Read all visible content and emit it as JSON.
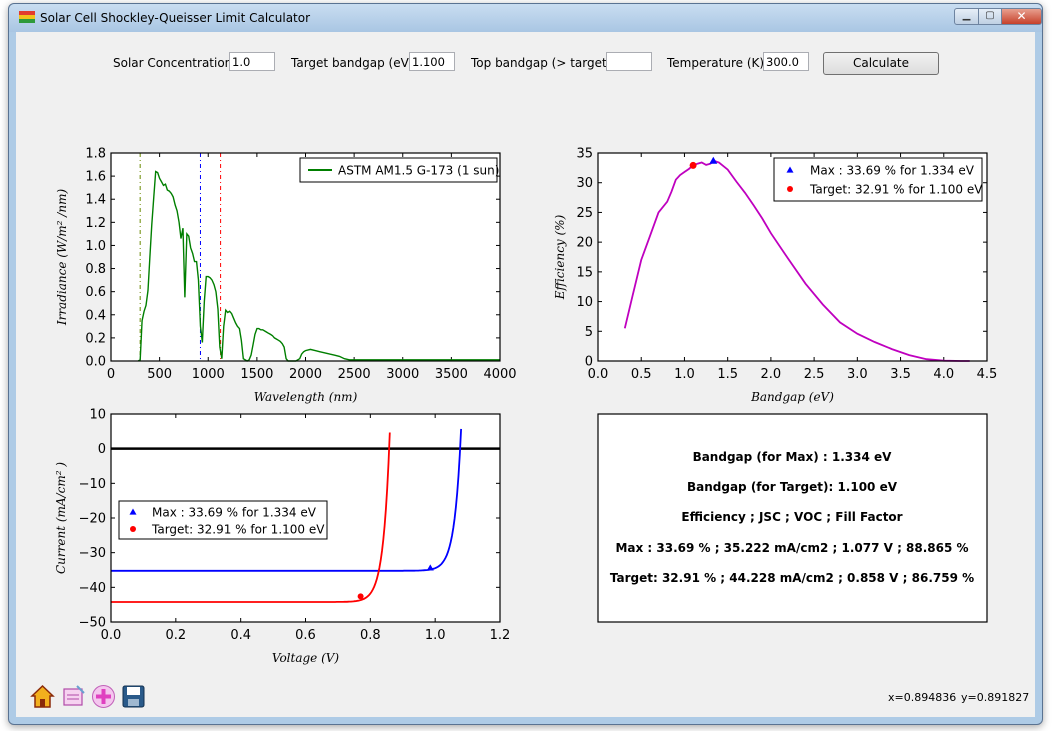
{
  "window": {
    "title": "Solar Cell Shockley-Queisser Limit Calculator",
    "controls": {
      "minimize": "▁",
      "maximize": "▢",
      "close": "✕"
    }
  },
  "toolbar": {
    "concentration_label": "Solar Concentration:",
    "concentration_value": "1.0",
    "target_label": "Target bandgap (eV):",
    "target_value": "1.100",
    "top_label": "Top bandgap (> target):",
    "top_value": "",
    "temp_label": "Temperature (K):",
    "temp_value": "300.0",
    "calculate_label": "Calculate"
  },
  "chart_data": [
    {
      "type": "line",
      "name": "spectrum",
      "xlabel": "Wavelength (nm)",
      "ylabel": "Irradiance (W/m² /nm)",
      "xlim": [
        0,
        4000
      ],
      "ylim": [
        0,
        1.8
      ],
      "xticks": [
        0,
        500,
        1000,
        1500,
        2000,
        2500,
        3000,
        3500,
        4000
      ],
      "yticks": [
        0.0,
        0.2,
        0.4,
        0.6,
        0.8,
        1.0,
        1.2,
        1.4,
        1.6,
        1.8
      ],
      "legend": "ASTM AM1.5 G-173 (1 sun)",
      "legend_position": "top-right",
      "color": "#007f00",
      "vlines": [
        {
          "x": 300,
          "color": "#6a8a00"
        },
        {
          "x": 920,
          "color": "#0000ff"
        },
        {
          "x": 1127,
          "color": "#ff0000"
        }
      ],
      "series": [
        {
          "x": [
            280,
            300,
            320,
            340,
            360,
            380,
            400,
            420,
            440,
            460,
            480,
            500,
            520,
            540,
            560,
            580,
            600,
            620,
            640,
            660,
            680,
            700,
            720,
            740,
            760,
            780,
            800,
            820,
            840,
            860,
            880,
            900,
            920,
            940,
            960,
            980,
            1000,
            1020,
            1040,
            1060,
            1080,
            1100,
            1120,
            1140,
            1160,
            1180,
            1200,
            1220,
            1240,
            1260,
            1280,
            1300,
            1320,
            1340,
            1360,
            1400,
            1420,
            1440,
            1460,
            1480,
            1500,
            1520,
            1540,
            1560,
            1580,
            1600,
            1620,
            1640,
            1660,
            1680,
            1700,
            1720,
            1740,
            1760,
            1780,
            1800,
            1820,
            1860,
            1900,
            1940,
            1960,
            1980,
            2000,
            2050,
            2100,
            2150,
            2200,
            2250,
            2300,
            2350,
            2400,
            2450,
            2500,
            2600,
            2800,
            3000,
            3200,
            3400,
            3600,
            3800,
            4000
          ],
          "y": [
            0.0,
            0.01,
            0.35,
            0.43,
            0.48,
            0.61,
            0.9,
            1.18,
            1.42,
            1.64,
            1.63,
            1.58,
            1.55,
            1.52,
            1.53,
            1.48,
            1.47,
            1.45,
            1.42,
            1.35,
            1.3,
            1.2,
            1.06,
            1.15,
            0.55,
            1.1,
            1.08,
            0.98,
            0.93,
            0.86,
            0.86,
            0.7,
            0.3,
            0.16,
            0.52,
            0.73,
            0.73,
            0.72,
            0.7,
            0.66,
            0.6,
            0.45,
            0.12,
            0.02,
            0.3,
            0.44,
            0.42,
            0.43,
            0.41,
            0.37,
            0.33,
            0.3,
            0.28,
            0.18,
            0.02,
            0.0,
            0.01,
            0.05,
            0.14,
            0.23,
            0.28,
            0.28,
            0.27,
            0.27,
            0.26,
            0.25,
            0.24,
            0.23,
            0.22,
            0.2,
            0.19,
            0.18,
            0.17,
            0.15,
            0.12,
            0.02,
            0.0,
            0.0,
            0.0,
            0.02,
            0.06,
            0.08,
            0.09,
            0.1,
            0.09,
            0.08,
            0.07,
            0.06,
            0.05,
            0.04,
            0.02,
            0.01,
            0.01,
            0.01,
            0.01,
            0.01,
            0.01,
            0.01,
            0.01,
            0.01,
            0.01
          ]
        }
      ]
    },
    {
      "type": "line",
      "name": "efficiency",
      "xlabel": "Bandgap (eV)",
      "ylabel": "Efficiency (%)",
      "xlim": [
        0,
        4.5
      ],
      "ylim": [
        0,
        35
      ],
      "xticks": [
        0.0,
        0.5,
        1.0,
        1.5,
        2.0,
        2.5,
        3.0,
        3.5,
        4.0,
        4.5
      ],
      "yticks": [
        0,
        5,
        10,
        15,
        20,
        25,
        30,
        35
      ],
      "legend_position": "top-right",
      "color": "#bf00bf",
      "series": [
        {
          "x": [
            0.31,
            0.4,
            0.5,
            0.6,
            0.7,
            0.8,
            0.85,
            0.9,
            0.95,
            1.0,
            1.05,
            1.1,
            1.15,
            1.2,
            1.25,
            1.3,
            1.34,
            1.4,
            1.5,
            1.6,
            1.7,
            1.8,
            1.9,
            2.0,
            2.2,
            2.4,
            2.6,
            2.8,
            3.0,
            3.2,
            3.4,
            3.6,
            3.8,
            4.0,
            4.2,
            4.3
          ],
          "y": [
            5.5,
            11.0,
            17.0,
            21.0,
            25.0,
            26.8,
            28.5,
            30.5,
            31.3,
            31.8,
            32.3,
            32.91,
            33.2,
            33.4,
            33.0,
            33.2,
            33.69,
            33.4,
            32.2,
            30.2,
            28.3,
            26.2,
            24.0,
            21.5,
            17.2,
            13.0,
            9.5,
            6.5,
            4.6,
            3.2,
            2.0,
            1.0,
            0.3,
            0.05,
            0.0,
            0.0
          ]
        }
      ],
      "points": [
        {
          "label": "Max    : 33.69 % for 1.334 eV",
          "x": 1.334,
          "y": 33.69,
          "marker": "triangle",
          "color": "#0000ff"
        },
        {
          "label": "Target: 32.91 % for 1.100 eV",
          "x": 1.1,
          "y": 32.91,
          "marker": "circle",
          "color": "#ff0000"
        }
      ]
    },
    {
      "type": "line",
      "name": "iv",
      "xlabel": "Voltage (V)",
      "ylabel": "Current (mA/cm² )",
      "xlim": [
        0,
        1.2
      ],
      "ylim": [
        -50,
        10
      ],
      "xticks": [
        0.0,
        0.2,
        0.4,
        0.6,
        0.8,
        1.0,
        1.2
      ],
      "yticks": [
        10,
        0,
        -10,
        -20,
        -30,
        -40,
        -50
      ],
      "legend_position": "lower-left",
      "zero_line": true,
      "series": [
        {
          "name": "max",
          "color": "#0000ff",
          "isc": -35.222,
          "voc": 1.077,
          "vmax": 1.08
        },
        {
          "name": "target",
          "color": "#ff0000",
          "isc": -44.228,
          "voc": 0.858,
          "vmax": 0.86
        }
      ],
      "points": [
        {
          "label": "Max    : 33.69 % for 1.334 eV",
          "x": 0.985,
          "y": -34.4,
          "marker": "triangle",
          "color": "#0000ff"
        },
        {
          "label": "Target: 32.91 % for 1.100 eV",
          "x": 0.77,
          "y": -42.6,
          "marker": "circle",
          "color": "#ff0000"
        }
      ]
    }
  ],
  "info": {
    "lines": [
      "Bandgap (for Max)   : 1.334 eV",
      "Bandgap (for Target): 1.100 eV",
      "Efficiency ; JSC ; VOC ; Fill Factor",
      "Max   : 33.69 % ; 35.222 mA/cm2 ; 1.077 V ; 88.865 %",
      "Target: 32.91 % ; 44.228 mA/cm2 ; 0.858 V ; 86.759 %"
    ]
  },
  "nav_toolbar": {
    "icons": [
      "home-icon",
      "configure-subplots-icon",
      "pan-icon",
      "save-icon"
    ]
  },
  "status": {
    "x_readout": "x=0.894836",
    "y_readout": "y=0.891827"
  }
}
